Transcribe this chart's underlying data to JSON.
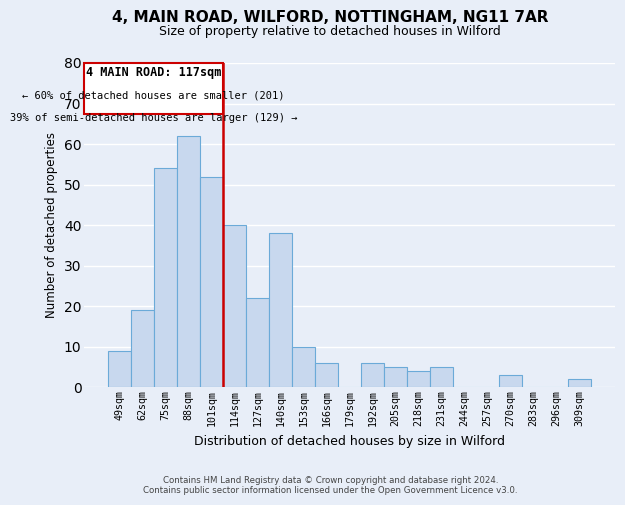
{
  "title": "4, MAIN ROAD, WILFORD, NOTTINGHAM, NG11 7AR",
  "subtitle": "Size of property relative to detached houses in Wilford",
  "xlabel": "Distribution of detached houses by size in Wilford",
  "ylabel": "Number of detached properties",
  "categories": [
    "49sqm",
    "62sqm",
    "75sqm",
    "88sqm",
    "101sqm",
    "114sqm",
    "127sqm",
    "140sqm",
    "153sqm",
    "166sqm",
    "179sqm",
    "192sqm",
    "205sqm",
    "218sqm",
    "231sqm",
    "244sqm",
    "257sqm",
    "270sqm",
    "283sqm",
    "296sqm",
    "309sqm"
  ],
  "values": [
    9,
    19,
    54,
    62,
    52,
    40,
    22,
    38,
    10,
    6,
    0,
    6,
    5,
    4,
    5,
    0,
    0,
    3,
    0,
    0,
    2
  ],
  "bar_color": "#c8d8ee",
  "bar_edge_color": "#6baad8",
  "highlight_line_color": "#cc0000",
  "annotation_title": "4 MAIN ROAD: 117sqm",
  "annotation_line1": "← 60% of detached houses are smaller (201)",
  "annotation_line2": "39% of semi-detached houses are larger (129) →",
  "annotation_box_color": "#ffffff",
  "annotation_box_edge_color": "#cc0000",
  "ylim": [
    0,
    80
  ],
  "yticks": [
    0,
    10,
    20,
    30,
    40,
    50,
    60,
    70,
    80
  ],
  "background_color": "#e8eef8",
  "grid_color": "#ffffff",
  "footer_line1": "Contains HM Land Registry data © Crown copyright and database right 2024.",
  "footer_line2": "Contains public sector information licensed under the Open Government Licence v3.0."
}
